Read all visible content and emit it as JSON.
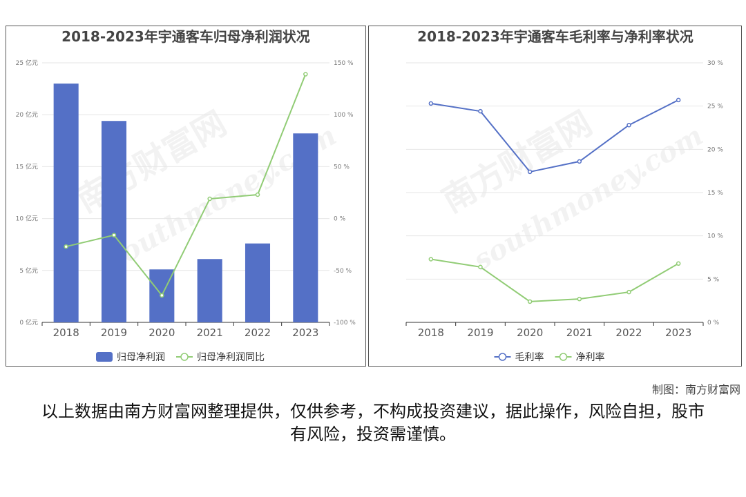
{
  "credit": "制图：南方财富网",
  "disclaimer": "以上数据由南方财富网整理提供，仅供参考，不构成投资建议，据此操作，风险自担，股市有风险，投资需谨慎。",
  "watermark": "南方财富网",
  "watermark_url": "southmoney.com",
  "chart_data": [
    {
      "type": "bar",
      "title": "2018-2023年宇通客车归母净利润状况",
      "categories": [
        "2018",
        "2019",
        "2020",
        "2021",
        "2022",
        "2023"
      ],
      "y_left": {
        "ticks": [
          "0 亿元",
          "5 亿元",
          "10 亿元",
          "15 亿元",
          "20 亿元",
          "25 亿元"
        ],
        "ylim": [
          0,
          25
        ]
      },
      "y_right": {
        "ticks": [
          "-100 %",
          "-50 %",
          "0 %",
          "50 %",
          "100 %",
          "150 %"
        ],
        "ylim": [
          -100,
          150
        ]
      },
      "grid": true,
      "legend_position": "bottom",
      "series": [
        {
          "name": "归母净利润",
          "kind": "bar",
          "axis": "left",
          "color": "#5470c6",
          "values": [
            23.0,
            19.4,
            5.1,
            6.1,
            7.6,
            18.2
          ]
        },
        {
          "name": "归母净利润同比",
          "kind": "line",
          "axis": "right",
          "color": "#91cc75",
          "values": [
            -27,
            -16,
            -74,
            19,
            23,
            139
          ]
        }
      ]
    },
    {
      "type": "line",
      "title": "2018-2023年宇通客车毛利率与净利率状况",
      "categories": [
        "2018",
        "2019",
        "2020",
        "2021",
        "2022",
        "2023"
      ],
      "y_right": {
        "ticks": [
          "0 %",
          "5 %",
          "10 %",
          "15 %",
          "20 %",
          "25 %",
          "30 %"
        ],
        "ylim": [
          0,
          30
        ]
      },
      "grid": true,
      "legend_position": "bottom",
      "series": [
        {
          "name": "毛利率",
          "kind": "line",
          "axis": "right",
          "color": "#5470c6",
          "values": [
            25.3,
            24.4,
            17.4,
            18.6,
            22.8,
            25.7
          ]
        },
        {
          "name": "净利率",
          "kind": "line",
          "axis": "right",
          "color": "#91cc75",
          "values": [
            7.3,
            6.4,
            2.4,
            2.7,
            3.5,
            6.8
          ]
        }
      ]
    }
  ]
}
